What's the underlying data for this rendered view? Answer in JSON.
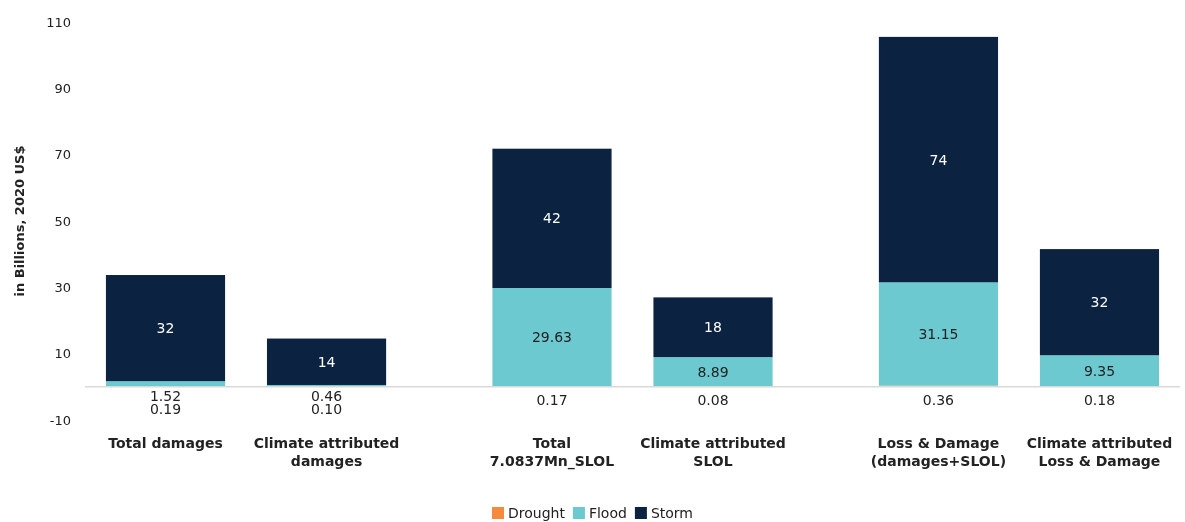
{
  "chart_data": {
    "type": "bar",
    "stacked": true,
    "ylabel": "in Billions, 2020 US$",
    "categories": [
      "Total damages",
      "Climate attributed damages",
      "Total 7.0837Mn_SLOL",
      "Climate attributed SLOL",
      "Loss & Damage (damages+SLOL)",
      "Climate attributed Loss & Damage"
    ],
    "series": [
      {
        "name": "Drought",
        "color": "#f58a3c",
        "values": [
          0.19,
          0.1,
          0.17,
          0.08,
          0.36,
          0.18
        ],
        "value_labels": [
          "0.19",
          "0.10",
          "0.17",
          "0.08",
          "0.36",
          "0.18"
        ]
      },
      {
        "name": "Flood",
        "color": "#6cc9d0",
        "values": [
          1.52,
          0.46,
          29.63,
          8.89,
          31.15,
          9.35
        ],
        "value_labels": [
          "1.52",
          "0.46",
          "29.63",
          "8.89",
          "31.15",
          "9.35"
        ]
      },
      {
        "name": "Storm",
        "color": "#0b2240",
        "values": [
          32,
          14,
          42,
          18,
          74,
          32
        ],
        "value_labels": [
          "32",
          "14",
          "42",
          "18",
          "74",
          "32"
        ]
      }
    ],
    "ylim": [
      -10,
      110
    ],
    "yticks": [
      -10,
      10,
      30,
      50,
      70,
      90,
      110
    ],
    "grid": false,
    "legend": "bottom"
  }
}
